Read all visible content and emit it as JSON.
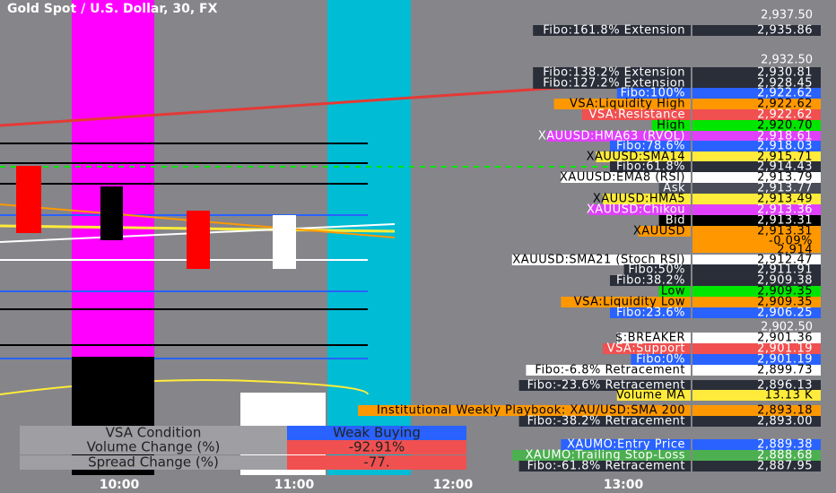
{
  "header": {
    "title": "Gold Spot / U.S. Dollar, 30, FX"
  },
  "price_axis": [
    "2,937.50",
    "2,932.50",
    "2,902.50"
  ],
  "time_axis": [
    "10:00",
    "11:00",
    "12:00",
    "13:00"
  ],
  "labels": [
    {
      "text": "Fibo:161.8% Extension",
      "price": "2,935.86",
      "color": "#2a2e39",
      "ink": "#ffffff"
    },
    {
      "text": "Fibo:138.2% Extension",
      "price": "2,930.81",
      "color": "#2a2e39",
      "ink": "#ffffff"
    },
    {
      "text": "Fibo:127.2% Extension",
      "price": "2,928.45",
      "color": "#2a2e39",
      "ink": "#ffffff"
    },
    {
      "text": "Fibo:100%",
      "price": "2,922.62",
      "color": "#2962ff",
      "ink": "#ffffff"
    },
    {
      "text": "VSA:Liquidity High",
      "price": "2,922.62",
      "color": "#ff9800",
      "ink": "#000000"
    },
    {
      "text": "VSA:Resistance",
      "price": "2,922.62",
      "color": "#f05050",
      "ink": "#ffffff"
    },
    {
      "text": "High",
      "price": "2,920.70",
      "color": "#00e600",
      "ink": "#000000"
    },
    {
      "text": "XAUUSD:HMA63 (RVOL)",
      "price": "2,918.61",
      "color": "#e040fb",
      "ink": "#ffffff"
    },
    {
      "text": "Fibo:78.6%",
      "price": "2,918.03",
      "color": "#2962ff",
      "ink": "#ffffff"
    },
    {
      "text": "XAUUSD:SMA14",
      "price": "2,915.71",
      "color": "#ffeb3b",
      "ink": "#000000"
    },
    {
      "text": "Fibo:61.8%",
      "price": "2,914.43",
      "color": "#2a2e39",
      "ink": "#ffffff"
    },
    {
      "text": "XAUUSD:EMA8 (RSI)",
      "price": "2,913.79",
      "color": "#ffffff",
      "ink": "#000000"
    },
    {
      "text": "Ask",
      "price": "2,913.77",
      "color": "#4a4d57",
      "ink": "#ffffff"
    },
    {
      "text": "XAUUSD:HMA5",
      "price": "2,913.49",
      "color": "#ffeb3b",
      "ink": "#000000"
    },
    {
      "text": "XAUUSD:Chikou",
      "price": "2,913.36",
      "color": "#e040fb",
      "ink": "#ffffff"
    },
    {
      "text": "Bid",
      "price": "2,913.31",
      "color": "#000000",
      "ink": "#ffffff"
    },
    {
      "text": "XAUUSD",
      "price": "2,913.31",
      "color": "#ff9800",
      "ink": "#000000"
    },
    {
      "text": "XAUUSD:SMA21 (Stoch RSI)",
      "price": "2,912.47",
      "color": "#ffffff",
      "ink": "#000000"
    },
    {
      "text": "Fibo:50%",
      "price": "2,911.91",
      "color": "#2a2e39",
      "ink": "#ffffff"
    },
    {
      "text": "Fibo:38.2%",
      "price": "2,909.38",
      "color": "#2a2e39",
      "ink": "#ffffff"
    },
    {
      "text": "Low",
      "price": "2,909.35",
      "color": "#00e600",
      "ink": "#000000"
    },
    {
      "text": "VSA:Liquidity Low",
      "price": "2,909.35",
      "color": "#ff9800",
      "ink": "#000000"
    },
    {
      "text": "Fibo:23.6%",
      "price": "2,906.25",
      "color": "#2962ff",
      "ink": "#ffffff"
    },
    {
      "text": "$:BREAKER",
      "price": "2,901.36",
      "color": "#ffffff",
      "ink": "#000000"
    },
    {
      "text": "VSA:Support",
      "price": "2,901.19",
      "color": "#f05050",
      "ink": "#ffffff"
    },
    {
      "text": "Fibo:0%",
      "price": "2,901.19",
      "color": "#2962ff",
      "ink": "#ffffff"
    },
    {
      "text": "Fibo:-6.8% Retracement",
      "price": "2,899.73",
      "color": "#ffffff",
      "ink": "#000000"
    },
    {
      "text": "Fibo:-23.6% Retracement",
      "price": "2,896.13",
      "color": "#2a2e39",
      "ink": "#ffffff"
    },
    {
      "text": "Volume MA",
      "price": "13.13 K",
      "color": "#ffeb3b",
      "ink": "#000000"
    },
    {
      "text": "Institutional Weekly Playbook: XAU/USD:SMA 200",
      "price": "2,893.18",
      "color": "#ff9800",
      "ink": "#000000"
    },
    {
      "text": "Fibo:-38.2% Retracement",
      "price": "2,893.00",
      "color": "#2a2e39",
      "ink": "#ffffff"
    },
    {
      "text": "XAUMO:Entry Price",
      "price": "2,889.38",
      "color": "#2962ff",
      "ink": "#ffffff"
    },
    {
      "text": "XAUMO:Trailing Stop-Loss",
      "price": "2,888.68",
      "color": "#4caf50",
      "ink": "#ffffff"
    },
    {
      "text": "Fibo:-61.8% Retracement",
      "price": "2,887.95",
      "color": "#2a2e39",
      "ink": "#ffffff"
    }
  ],
  "change": {
    "percent": "-0.09%",
    "countdown": "2,914"
  },
  "table": {
    "rows": [
      [
        "VSA Condition",
        "Weak Buying"
      ],
      [
        "Volume Change (%)",
        "-92.91%"
      ],
      [
        "Spread Change (%)",
        "-77."
      ]
    ]
  }
}
